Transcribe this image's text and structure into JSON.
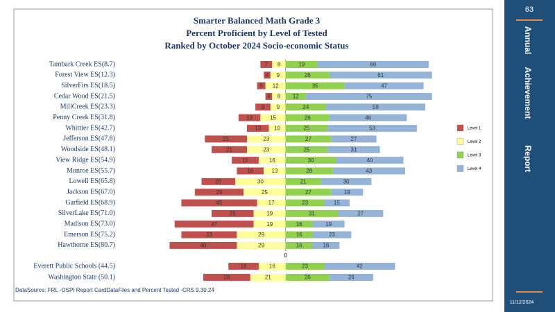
{
  "chart_data": {
    "type": "diverging_bar",
    "title": [
      "Smarter Balanced Math Grade 3",
      "Percent Proficient by Level of Tested",
      "Ranked by October 2024 Socio-economic  Status"
    ],
    "categories": [
      "Tambark Creek ES(8.7)",
      "Forest View ES(12.3)",
      "SilverFirs ES(18.5)",
      "Cedar Wood ES(21.5)",
      "MillCreek ES(23.3)",
      "Penny Creek ES(31.8)",
      "Whittier ES(42.7)",
      "Jefferson  ES(47.8)",
      "Woodside ES(48.1)",
      "View Ridge ES(54.9)",
      "Monroe ES(55.7)",
      "Lowell ES(65.8)",
      "Jackson ES(67.0)",
      "Garfield  ES(68.9)",
      "SilverLake ES(71.0)",
      "Madison ES(73.0)",
      "Emerson ES(75.2)",
      "Hawthorne  ES(80.7)",
      "Everett  Public Schools (44.5)",
      "Washington State  (50.1)"
    ],
    "series": [
      {
        "name": "Level 1",
        "color": "#c0504d",
        "values": [
          7,
          4,
          5,
          4,
          9,
          13,
          13,
          25,
          21,
          16,
          16,
          20,
          29,
          45,
          25,
          47,
          33,
          40,
          18,
          28
        ]
      },
      {
        "name": "Level 2",
        "color": "#ffff99",
        "values": [
          8,
          9,
          12,
          8,
          9,
          15,
          10,
          23,
          23,
          16,
          13,
          30,
          25,
          17,
          19,
          19,
          29,
          29,
          16,
          21
        ]
      },
      {
        "name": "Level 3",
        "color": "#92d050",
        "values": [
          19,
          26,
          35,
          12,
          24,
          26,
          25,
          27,
          25,
          30,
          28,
          21,
          27,
          23,
          31,
          16,
          16,
          16,
          23,
          26
        ]
      },
      {
        "name": "Level 4",
        "color": "#95b3d7",
        "values": [
          66,
          61,
          47,
          75,
          59,
          46,
          53,
          27,
          31,
          40,
          43,
          30,
          19,
          15,
          27,
          19,
          23,
          16,
          42,
          26
        ]
      }
    ],
    "xlim": [
      -70,
      90
    ],
    "xticks": [
      0
    ],
    "legend": "right",
    "source": "DataSource:  FRL  -OSPI  Report  CardDataFiles  and  Percent  Tested    -CRS  9.30.24"
  },
  "slide": {
    "page_number": "63",
    "side_title": [
      "Annual",
      "Achievement",
      "Report"
    ],
    "date": "11/12/2024"
  }
}
